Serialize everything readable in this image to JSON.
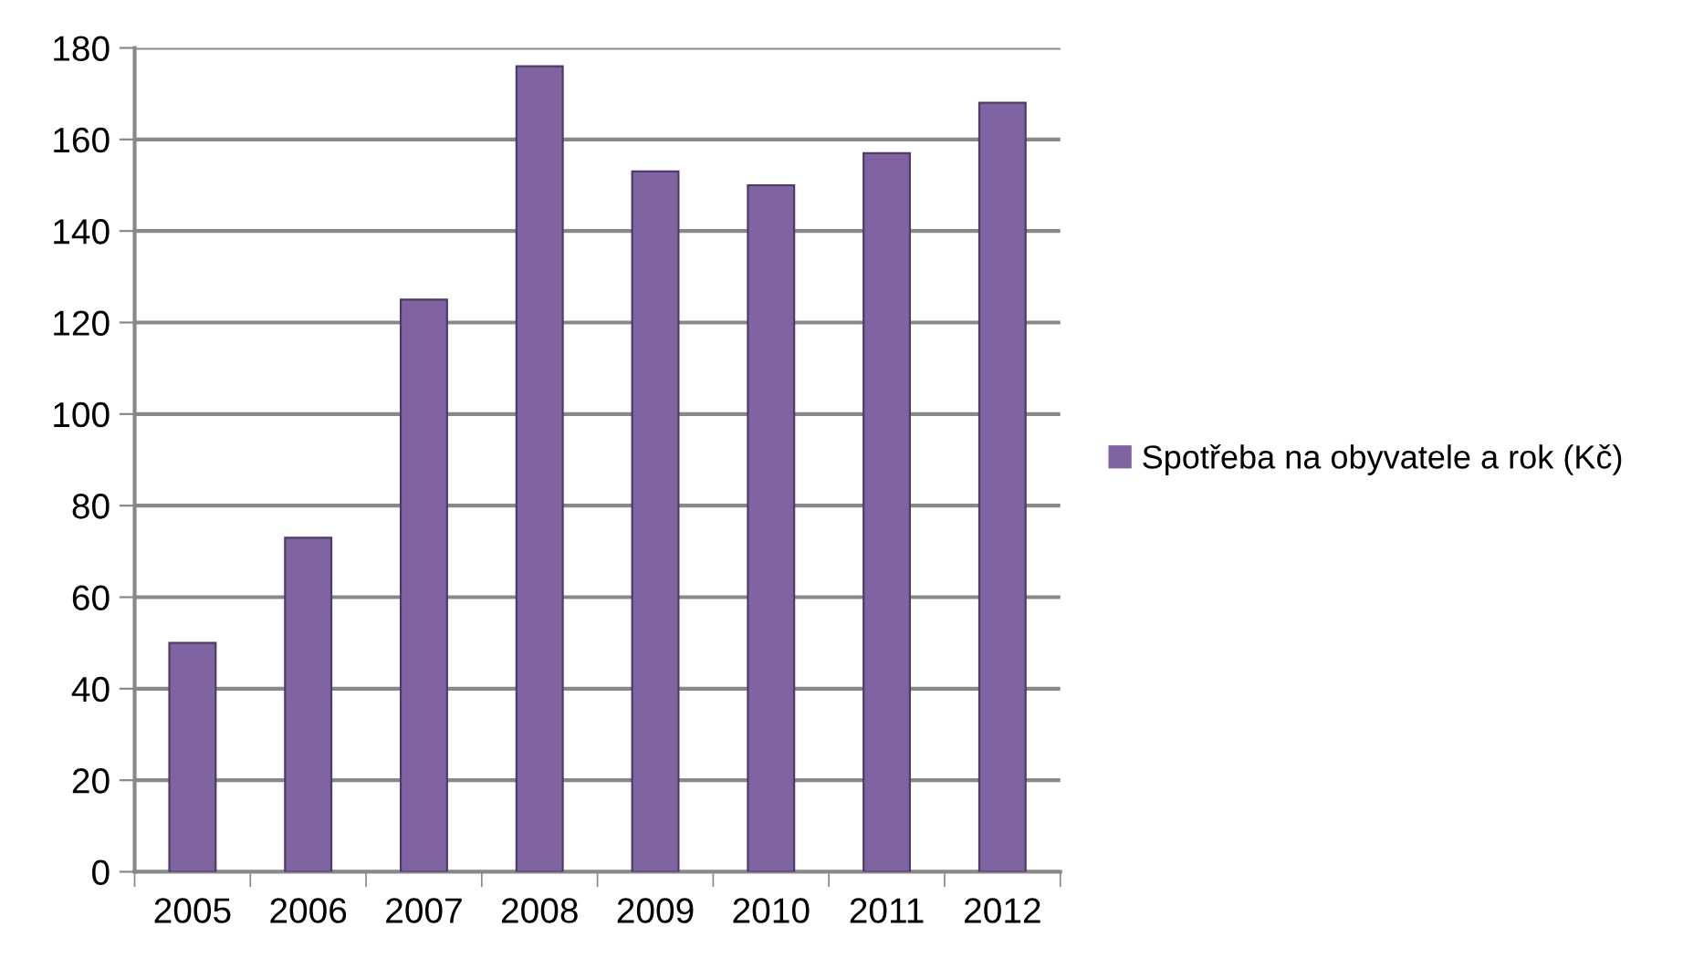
{
  "chart_data": {
    "type": "bar",
    "categories": [
      "2005",
      "2006",
      "2007",
      "2008",
      "2009",
      "2010",
      "2011",
      "2012"
    ],
    "series": [
      {
        "name": "Spotřeba na obyvatele a rok (Kč)",
        "color": "#8064a2",
        "values": [
          50,
          73,
          125,
          176,
          153,
          150,
          157,
          168
        ]
      }
    ],
    "ylim": [
      0,
      180
    ],
    "yticks": [
      0,
      20,
      40,
      60,
      80,
      100,
      120,
      140,
      160,
      180
    ],
    "grid": "y",
    "legend": "right"
  }
}
